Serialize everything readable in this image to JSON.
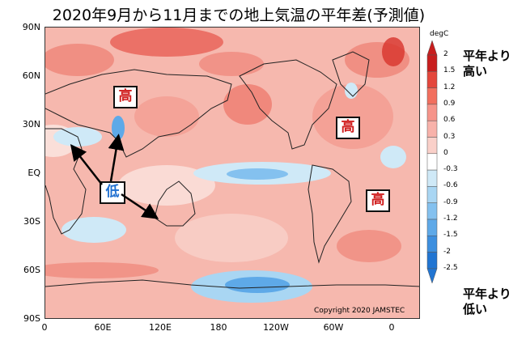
{
  "title": "2020年9月から11月までの地上気温の平年差(予測値)",
  "y_axis": {
    "ticks": [
      "90N",
      "60N",
      "30N",
      "EQ",
      "30S",
      "60S",
      "90S"
    ]
  },
  "x_axis": {
    "ticks": [
      "0",
      "60E",
      "120E",
      "180",
      "120W",
      "60W",
      "0"
    ]
  },
  "copyright": "Copyright 2020 JAMSTEC",
  "annotations": {
    "high_label": "高",
    "low_label": "低"
  },
  "colorbar": {
    "unit": "degC",
    "levels": [
      "2",
      "1.5",
      "1.2",
      "0.9",
      "0.6",
      "0.3",
      "0",
      "-0.3",
      "-0.6",
      "-0.9",
      "-1.2",
      "-1.5",
      "-2",
      "-2.5"
    ],
    "colors": [
      "#c81e1e",
      "#e4473c",
      "#f26f5e",
      "#f6948a",
      "#f8b2aa",
      "#fad0c9",
      "#ffffff",
      "#cfe9f7",
      "#a9d6f3",
      "#84c1ef",
      "#5ea9e8",
      "#3d8fdf",
      "#2175d2"
    ],
    "top_label": "平年より\n高い",
    "bottom_label": "平年より\n低い"
  }
}
